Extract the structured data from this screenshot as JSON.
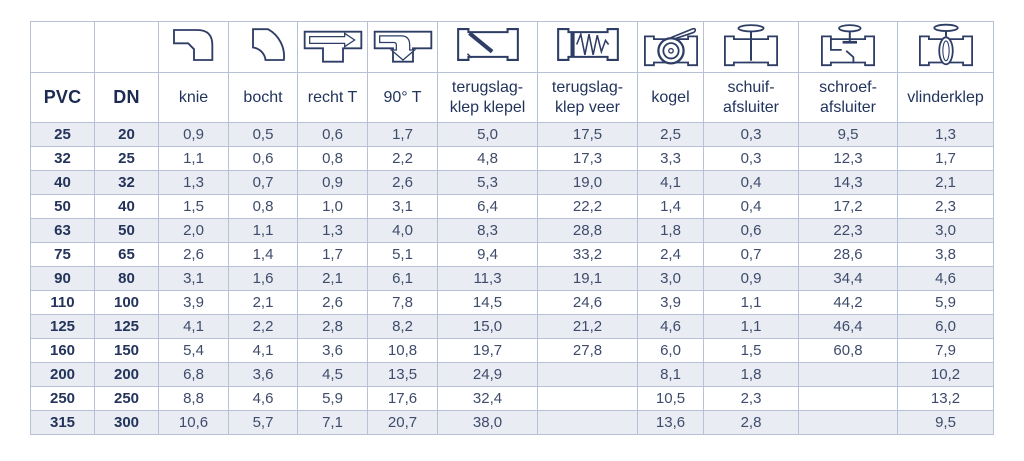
{
  "table": {
    "columns": [
      {
        "key": "pvc",
        "label": "PVC",
        "icon": null
      },
      {
        "key": "dn",
        "label": "DN",
        "icon": null
      },
      {
        "key": "knie",
        "label": "knie",
        "icon": "elbow-knee-icon"
      },
      {
        "key": "bocht",
        "label": "bocht",
        "icon": "bend-icon"
      },
      {
        "key": "recht_t",
        "label": "recht T",
        "icon": "straight-tee-icon"
      },
      {
        "key": "t90",
        "label": "90° T",
        "icon": "90-degree-tee-icon"
      },
      {
        "key": "tsk_klepel",
        "label": "terugslag-\nklep klepel",
        "icon": "check-valve-flap-icon"
      },
      {
        "key": "tsk_veer",
        "label": "terugslag-\nklep veer",
        "icon": "check-valve-spring-icon"
      },
      {
        "key": "kogel",
        "label": "kogel",
        "icon": "ball-valve-icon"
      },
      {
        "key": "schuif",
        "label": "schuif-\nafsluiter",
        "icon": "gate-valve-icon"
      },
      {
        "key": "schroef",
        "label": "schroef-\nafsluiter",
        "icon": "globe-valve-icon"
      },
      {
        "key": "vlinder",
        "label": "vlinderklep",
        "icon": "butterfly-valve-icon"
      }
    ],
    "rows": [
      [
        "25",
        "20",
        "0,9",
        "0,5",
        "0,6",
        "1,7",
        "5,0",
        "17,5",
        "2,5",
        "0,3",
        "9,5",
        "1,3"
      ],
      [
        "32",
        "25",
        "1,1",
        "0,6",
        "0,8",
        "2,2",
        "4,8",
        "17,3",
        "3,3",
        "0,3",
        "12,3",
        "1,7"
      ],
      [
        "40",
        "32",
        "1,3",
        "0,7",
        "0,9",
        "2,6",
        "5,3",
        "19,0",
        "4,1",
        "0,4",
        "14,3",
        "2,1"
      ],
      [
        "50",
        "40",
        "1,5",
        "0,8",
        "1,0",
        "3,1",
        "6,4",
        "22,2",
        "1,4",
        "0,4",
        "17,2",
        "2,3"
      ],
      [
        "63",
        "50",
        "2,0",
        "1,1",
        "1,3",
        "4,0",
        "8,3",
        "28,8",
        "1,8",
        "0,6",
        "22,3",
        "3,0"
      ],
      [
        "75",
        "65",
        "2,6",
        "1,4",
        "1,7",
        "5,1",
        "9,4",
        "33,2",
        "2,4",
        "0,7",
        "28,6",
        "3,8"
      ],
      [
        "90",
        "80",
        "3,1",
        "1,6",
        "2,1",
        "6,1",
        "11,3",
        "19,1",
        "3,0",
        "0,9",
        "34,4",
        "4,6"
      ],
      [
        "110",
        "100",
        "3,9",
        "2,1",
        "2,6",
        "7,8",
        "14,5",
        "24,6",
        "3,9",
        "1,1",
        "44,2",
        "5,9"
      ],
      [
        "125",
        "125",
        "4,1",
        "2,2",
        "2,8",
        "8,2",
        "15,0",
        "21,2",
        "4,6",
        "1,1",
        "46,4",
        "6,0"
      ],
      [
        "160",
        "150",
        "5,4",
        "4,1",
        "3,6",
        "10,8",
        "19,7",
        "27,8",
        "6,0",
        "1,5",
        "60,8",
        "7,9"
      ],
      [
        "200",
        "200",
        "6,8",
        "3,6",
        "4,5",
        "13,5",
        "24,9",
        "",
        "8,1",
        "1,8",
        "",
        "10,2"
      ],
      [
        "250",
        "250",
        "8,8",
        "4,6",
        "5,9",
        "17,6",
        "32,4",
        "",
        "10,5",
        "2,3",
        "",
        "13,2"
      ],
      [
        "315",
        "300",
        "10,6",
        "5,7",
        "7,1",
        "20,7",
        "38,0",
        "",
        "13,6",
        "2,8",
        "",
        "9,5"
      ]
    ]
  },
  "colors": {
    "text_navy": "#24335a",
    "value_text": "#3e4b6b",
    "grid_border": "#b7c1d5",
    "row_stripe": "#e9ecf3",
    "icon_stroke": "#2e3d66"
  }
}
